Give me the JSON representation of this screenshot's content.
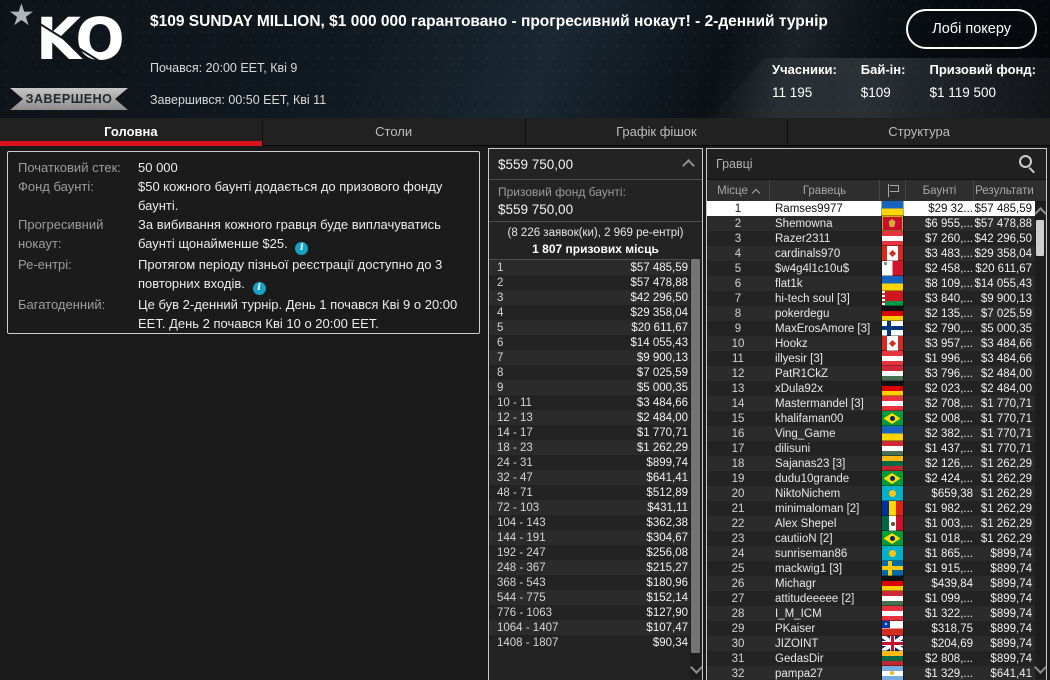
{
  "header": {
    "logo_text": "KO",
    "status_badge": "ЗАВЕРШЕНО",
    "title": "$109 SUNDAY MILLION, $1 000 000 гарантовано - прогресивний нокаут! - 2-денний турнір",
    "started": "Почався: 20:00 EET, Кві 9",
    "ended": "Завершився: 00:50 EET, Кві 11",
    "lobby_button": "Лобі покеру",
    "stats": [
      {
        "label": "Учасники:",
        "value": "11 195"
      },
      {
        "label": "Бай-ін:",
        "value": "$109"
      },
      {
        "label": "Призовий фонд:",
        "value": "$1 119 500"
      }
    ]
  },
  "icons": {
    "favorite": "star-icon",
    "search": "magnifier-icon",
    "sort": "caret-up-icon",
    "flag_column": "flag-icon",
    "info": "info-icon",
    "scroll_up": "chevron-up-icon",
    "scroll_down": "chevron-down-icon"
  },
  "colors": {
    "accent_red": "#d8131b",
    "info_cyan": "#17a3c4",
    "selected_row": "#ffffff",
    "badge_grey": "#a9a9a9"
  },
  "tabs": [
    {
      "key": "main",
      "label": "Головна",
      "active": true
    },
    {
      "key": "tables",
      "label": "Столи",
      "active": false
    },
    {
      "key": "chip-graph",
      "label": "Графік фішок",
      "active": false
    },
    {
      "key": "structure",
      "label": "Структура",
      "active": false
    }
  ],
  "info_panel": {
    "rows": [
      {
        "label": "Початковий стек:",
        "value": "50 000",
        "info": false
      },
      {
        "label": "Фонд баунті:",
        "value": "$50 кожного баунті додається до призового фонду баунті.",
        "info": false
      },
      {
        "label": "Прогресивний нокаут:",
        "value": "За вибивання кожного гравця буде виплачуватись баунті щонайменше $25.",
        "info": true
      },
      {
        "label": "Ре-ентрі:",
        "value": "Протягом періоду пізньої реєстрації доступно до 3 повторних входів.",
        "info": true
      },
      {
        "label": "Багатоденний:",
        "value": "Це був 2-денний турнір. День 1 почався Кві 9 о 20:00 EET. День 2 почався Кві 10 о 20:00 EET.",
        "info": false
      }
    ]
  },
  "prize_panel": {
    "total": "$559 750,00",
    "bounty_label": "Призовий фонд баунті:",
    "bounty_total": "$559 750,00",
    "entries_line": "(8 226 заявок(ки), 2 969 ре-ентрі)",
    "places_line": "1 807 призових місць",
    "payouts": [
      {
        "place": "1",
        "amount": "$57 485,59"
      },
      {
        "place": "2",
        "amount": "$57 478,88"
      },
      {
        "place": "3",
        "amount": "$42 296,50"
      },
      {
        "place": "4",
        "amount": "$29 358,04"
      },
      {
        "place": "5",
        "amount": "$20 611,67"
      },
      {
        "place": "6",
        "amount": "$14 055,43"
      },
      {
        "place": "7",
        "amount": "$9 900,13"
      },
      {
        "place": "8",
        "amount": "$7 025,59"
      },
      {
        "place": "9",
        "amount": "$5 000,35"
      },
      {
        "place": "10 - 11",
        "amount": "$3 484,66"
      },
      {
        "place": "12 - 13",
        "amount": "$2 484,00"
      },
      {
        "place": "14 - 17",
        "amount": "$1 770,71"
      },
      {
        "place": "18 - 23",
        "amount": "$1 262,29"
      },
      {
        "place": "24 - 31",
        "amount": "$899,74"
      },
      {
        "place": "32 - 47",
        "amount": "$641,41"
      },
      {
        "place": "48 - 71",
        "amount": "$512,89"
      },
      {
        "place": "72 - 103",
        "amount": "$431,11"
      },
      {
        "place": "104 - 143",
        "amount": "$362,38"
      },
      {
        "place": "144 - 191",
        "amount": "$304,67"
      },
      {
        "place": "192 - 247",
        "amount": "$256,08"
      },
      {
        "place": "248 - 367",
        "amount": "$215,27"
      },
      {
        "place": "368 - 543",
        "amount": "$180,96"
      },
      {
        "place": "544 - 775",
        "amount": "$152,14"
      },
      {
        "place": "776 - 1063",
        "amount": "$127,90"
      },
      {
        "place": "1064 - 1407",
        "amount": "$107,47"
      },
      {
        "place": "1408 - 1807",
        "amount": "$90,34"
      }
    ]
  },
  "players_panel": {
    "search_placeholder": "Гравці",
    "columns": {
      "place": "Місце",
      "player": "Гравець",
      "bounty": "Баунті",
      "results": "Результати"
    },
    "players": [
      {
        "place": "1",
        "name": "Ramses9977",
        "country": "ukraine",
        "bounty": "$29 32...",
        "result": "$57 485,59",
        "selected": true
      },
      {
        "place": "2",
        "name": "Shemowna",
        "country": "montenegro",
        "bounty": "$6 955,...",
        "result": "$57 478,88",
        "selected": false
      },
      {
        "place": "3",
        "name": "Razer2311",
        "country": "austria",
        "bounty": "$7 260,...",
        "result": "$42 296,50",
        "selected": false
      },
      {
        "place": "4",
        "name": "cardinals970",
        "country": "canada",
        "bounty": "$3 483,...",
        "result": "$29 358,04",
        "selected": false
      },
      {
        "place": "5",
        "name": "$w4g4l1c10u$",
        "country": "malta",
        "bounty": "$2 458,...",
        "result": "$20 611,67",
        "selected": false
      },
      {
        "place": "6",
        "name": "flat1k",
        "country": "ukraine",
        "bounty": "$8 109,...",
        "result": "$14 055,43",
        "selected": false
      },
      {
        "place": "7",
        "name": "hi-tech soul [3]",
        "country": "belarus",
        "bounty": "$3 840,...",
        "result": "$9 900,13",
        "selected": false
      },
      {
        "place": "8",
        "name": "pokerdegu",
        "country": "germany",
        "bounty": "$2 135,...",
        "result": "$7 025,59",
        "selected": false
      },
      {
        "place": "9",
        "name": "MaxErosAmore [3]",
        "country": "finland",
        "bounty": "$2 790,...",
        "result": "$5 000,35",
        "selected": false
      },
      {
        "place": "10",
        "name": "Hookz",
        "country": "canada",
        "bounty": "$3 957,...",
        "result": "$3 484,66",
        "selected": false
      },
      {
        "place": "11",
        "name": "illyesir [3]",
        "country": "austria",
        "bounty": "$1 996,...",
        "result": "$3 484,66",
        "selected": false
      },
      {
        "place": "12",
        "name": "PatR1CkZ",
        "country": "hungary",
        "bounty": "$3 796,...",
        "result": "$2 484,00",
        "selected": false
      },
      {
        "place": "13",
        "name": "xDula92x",
        "country": "germany",
        "bounty": "$2 023,...",
        "result": "$2 484,00",
        "selected": false
      },
      {
        "place": "14",
        "name": "Mastermandel [3]",
        "country": "austria",
        "bounty": "$2 708,...",
        "result": "$1 770,71",
        "selected": false
      },
      {
        "place": "15",
        "name": "khalifaman00",
        "country": "brazil",
        "bounty": "$2 008,...",
        "result": "$1 770,71",
        "selected": false
      },
      {
        "place": "16",
        "name": "Ving_Game",
        "country": "ukraine",
        "bounty": "$2 382,...",
        "result": "$1 770,71",
        "selected": false
      },
      {
        "place": "17",
        "name": "dilisuni",
        "country": "hungary",
        "bounty": "$1 437,...",
        "result": "$1 770,71",
        "selected": false
      },
      {
        "place": "18",
        "name": "Sajanas23 [3]",
        "country": "lithuania",
        "bounty": "$2 126,...",
        "result": "$1 262,29",
        "selected": false
      },
      {
        "place": "19",
        "name": "dudu10grande",
        "country": "brazil",
        "bounty": "$2 424,...",
        "result": "$1 262,29",
        "selected": false
      },
      {
        "place": "20",
        "name": "NiktoNichem",
        "country": "kazakhstan",
        "bounty": "$659,38",
        "result": "$1 262,29",
        "selected": false
      },
      {
        "place": "21",
        "name": "minimaloman [2]",
        "country": "romania",
        "bounty": "$1 982,...",
        "result": "$1 262,29",
        "selected": false
      },
      {
        "place": "22",
        "name": "Alex Shepel",
        "country": "mexico",
        "bounty": "$1 003,...",
        "result": "$1 262,29",
        "selected": false
      },
      {
        "place": "23",
        "name": "cautiioN [2]",
        "country": "brazil",
        "bounty": "$1 018,...",
        "result": "$1 262,29",
        "selected": false
      },
      {
        "place": "24",
        "name": "sunriseman86",
        "country": "kazakhstan",
        "bounty": "$1 865,...",
        "result": "$899,74",
        "selected": false
      },
      {
        "place": "25",
        "name": "mackwig1 [3]",
        "country": "sweden",
        "bounty": "$1 915,...",
        "result": "$899,74",
        "selected": false
      },
      {
        "place": "26",
        "name": "Michagr",
        "country": "germany",
        "bounty": "$439,84",
        "result": "$899,74",
        "selected": false
      },
      {
        "place": "27",
        "name": "attitudeeeee [2]",
        "country": "hungary",
        "bounty": "$1 099,...",
        "result": "$899,74",
        "selected": false
      },
      {
        "place": "28",
        "name": "I_M_ICM",
        "country": "austria",
        "bounty": "$1 322,...",
        "result": "$899,74",
        "selected": false
      },
      {
        "place": "29",
        "name": "PKaiser",
        "country": "chile",
        "bounty": "$318,75",
        "result": "$899,74",
        "selected": false
      },
      {
        "place": "30",
        "name": "JIZOINT",
        "country": "uk",
        "bounty": "$204,69",
        "result": "$899,74",
        "selected": false
      },
      {
        "place": "31",
        "name": "GedasDir",
        "country": "lithuania",
        "bounty": "$2 808,...",
        "result": "$899,74",
        "selected": false
      },
      {
        "place": "32",
        "name": "pampa27",
        "country": "argentina",
        "bounty": "$1 329,...",
        "result": "$641,41",
        "selected": false
      }
    ]
  }
}
